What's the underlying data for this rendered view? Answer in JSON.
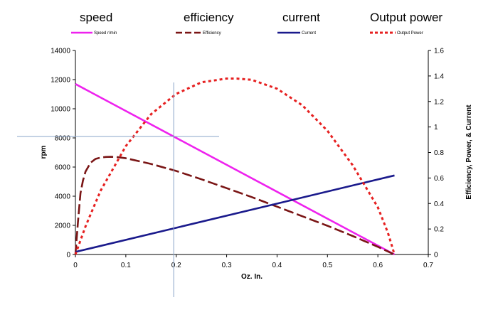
{
  "annotations": {
    "speed": "speed",
    "efficiency": "efficiency",
    "current": "current",
    "output_power": "Output power"
  },
  "colors": {
    "speed": "#ee22ee",
    "efficiency": "#7a1515",
    "current": "#1a1a8c",
    "output_power": "#e62020",
    "crosshair": "#8aa4c8"
  },
  "chart_data": {
    "type": "line",
    "xlabel": "Oz. In.",
    "ylabel": "rpm",
    "y2label": "Efficiency, Power, & Current",
    "xlim": [
      0,
      0.7
    ],
    "ylim": [
      0,
      14000
    ],
    "y2lim": [
      0,
      1.6
    ],
    "x_ticks": [
      "0",
      "0.1",
      "0.2",
      "0.3",
      "0.4",
      "0.5",
      "0.6",
      "0.7"
    ],
    "y_ticks": [
      "0",
      "2000",
      "4000",
      "6000",
      "8000",
      "10000",
      "12000",
      "14000"
    ],
    "y2_ticks": [
      "0",
      "0.2",
      "0.4",
      "0.6",
      "0.8",
      "1",
      "1.2",
      "1.4",
      "1.6"
    ],
    "grid": false,
    "legend_position": "top",
    "series": [
      {
        "name": "Speed r/min",
        "axis": "left",
        "style": "solid",
        "x": [
          0,
          0.633
        ],
        "y": [
          11700,
          0
        ]
      },
      {
        "name": "Efficiency",
        "axis": "right",
        "style": "dashed",
        "x": [
          0,
          0.005,
          0.01,
          0.015,
          0.02,
          0.03,
          0.04,
          0.05,
          0.06,
          0.07,
          0.08,
          0.1,
          0.15,
          0.2,
          0.25,
          0.3,
          0.35,
          0.4,
          0.45,
          0.5,
          0.55,
          0.6,
          0.633
        ],
        "y": [
          0,
          0.25,
          0.48,
          0.58,
          0.65,
          0.72,
          0.75,
          0.76,
          0.765,
          0.766,
          0.765,
          0.755,
          0.71,
          0.655,
          0.59,
          0.52,
          0.45,
          0.375,
          0.3,
          0.225,
          0.145,
          0.06,
          0
        ]
      },
      {
        "name": "Current",
        "axis": "right",
        "style": "solid",
        "x": [
          0,
          0.633
        ],
        "y": [
          0.02,
          0.62
        ]
      },
      {
        "name": "Output Power",
        "axis": "right",
        "style": "dotted",
        "x": [
          0,
          0.02,
          0.05,
          0.1,
          0.15,
          0.2,
          0.25,
          0.3,
          0.32,
          0.35,
          0.4,
          0.45,
          0.5,
          0.55,
          0.6,
          0.62,
          0.633
        ],
        "y": [
          0,
          0.22,
          0.5,
          0.85,
          1.1,
          1.26,
          1.35,
          1.38,
          1.38,
          1.37,
          1.3,
          1.17,
          0.97,
          0.7,
          0.37,
          0.17,
          0
        ]
      }
    ],
    "crosshair": {
      "x": 0.195,
      "y": 8100
    }
  }
}
